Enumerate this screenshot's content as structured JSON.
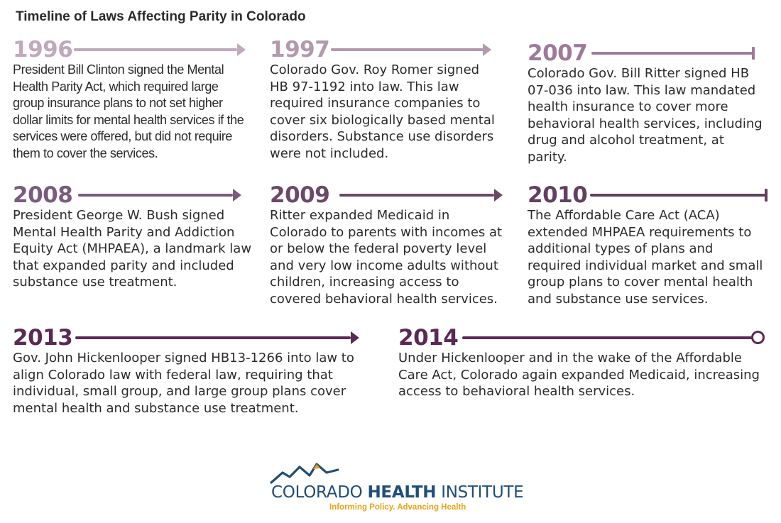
{
  "title": "Timeline of Laws Affecting Parity in Colorado",
  "colors": {
    "light_purple": "#c0a8bd",
    "mid_purple": "#9e7a9a",
    "purple": "#7a5a7f",
    "deep_purple": "#6b4868",
    "dark_purple": "#5a2a55",
    "logo_blue": "#1f4e79",
    "logo_orange": "#e8a31a"
  },
  "entries": [
    {
      "year": "1996",
      "text": "President Bill Clinton signed the Mental Health Parity Act, which required large group insurance plans to not set higher dollar limits for mental health services if the services were offered, but did not require them to cover the services."
    },
    {
      "year": "1997",
      "text": "Colorado Gov. Roy Romer signed HB 97-1192 into law. This law required insurance companies to cover six biologically based mental disorders. Substance use disorders were not included."
    },
    {
      "year": "2007",
      "text": "Colorado Gov. Bill Ritter signed HB 07-036 into law. This law mandated health insurance to cover more behavioral health services, including drug and alcohol treatment, at parity."
    },
    {
      "year": "2008",
      "text": "President George W. Bush signed Mental Health Parity and Addiction Equity Act (MHPAEA), a landmark law that expanded parity and included substance use treatment."
    },
    {
      "year": "2009",
      "text": "Ritter expanded Medicaid in Colorado to parents with incomes at or below the federal poverty level and very low income adults without children, increasing access to covered behavioral health services."
    },
    {
      "year": "2010",
      "text": "The Affordable Care Act (ACA) extended MHPAEA requirements to additional types of plans and required individual market and small group plans to cover mental health and substance use services."
    },
    {
      "year": "2013",
      "text": "Gov. John Hickenlooper signed HB13-1266 into law to align Colorado law with federal law, requiring that individual, small group, and large group plans cover mental health and substance use treatment."
    },
    {
      "year": "2014",
      "text": "Under Hickenlooper and in the wake of the Affordable Care Act, Colorado again expanded Medicaid, increasing access to behavioral health services."
    }
  ],
  "logo": {
    "name_regular": "COLORADO ",
    "name_bold": "HEALTH",
    "name_regular_2": " INSTITUTE",
    "tagline": "Informing Policy. Advancing Health"
  }
}
